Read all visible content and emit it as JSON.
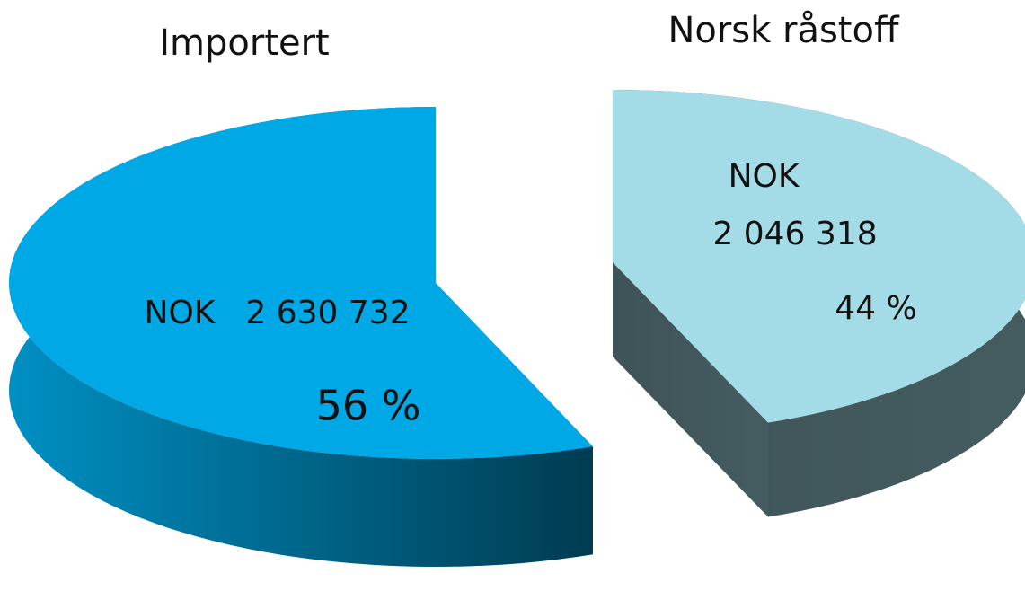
{
  "chart_data": {
    "type": "pie",
    "categories": [
      "Importert",
      "Norsk råstoff"
    ],
    "values": [
      56,
      44
    ],
    "value_labels": [
      "56 %",
      "44 %"
    ],
    "currency": "NOK",
    "amounts": [
      2630732,
      2046318
    ],
    "amount_labels": [
      "2 630 732",
      "2 046 318"
    ],
    "colors": [
      "#00a9e6",
      "#a3dbe6"
    ],
    "three_d": true,
    "exploded": true
  }
}
